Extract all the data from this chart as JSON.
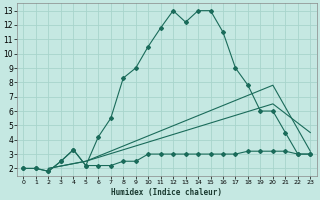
{
  "xlabel": "Humidex (Indice chaleur)",
  "xlim": [
    -0.5,
    23.5
  ],
  "ylim": [
    1.5,
    13.5
  ],
  "yticks": [
    2,
    3,
    4,
    5,
    6,
    7,
    8,
    9,
    10,
    11,
    12,
    13
  ],
  "xticks": [
    0,
    1,
    2,
    3,
    4,
    5,
    6,
    7,
    8,
    9,
    10,
    11,
    12,
    13,
    14,
    15,
    16,
    17,
    18,
    19,
    20,
    21,
    22,
    23
  ],
  "background_color": "#c5e8e2",
  "grid_color": "#a8d4cc",
  "line_color": "#1a6b5a",
  "line1_x": [
    0,
    1,
    2,
    3,
    4,
    5,
    6,
    7,
    8,
    9,
    10,
    11,
    12,
    13,
    14,
    15,
    16,
    17,
    18,
    19,
    20,
    21,
    22,
    23
  ],
  "line1_y": [
    2.0,
    2.0,
    1.8,
    2.5,
    3.3,
    2.2,
    4.2,
    5.5,
    8.3,
    9.0,
    10.5,
    11.8,
    13.0,
    12.2,
    13.0,
    13.0,
    11.5,
    9.0,
    7.8,
    6.0,
    6.0,
    4.5,
    3.0,
    3.0
  ],
  "line2_x": [
    0,
    1,
    2,
    3,
    4,
    5,
    6,
    7,
    8,
    9,
    10,
    11,
    12,
    13,
    14,
    15,
    16,
    17,
    18,
    19,
    20,
    21,
    22,
    23
  ],
  "line2_y": [
    2.0,
    2.0,
    1.8,
    2.5,
    3.3,
    2.2,
    2.2,
    2.2,
    2.5,
    2.5,
    3.0,
    3.0,
    3.0,
    3.0,
    3.0,
    3.0,
    3.0,
    3.0,
    3.2,
    3.2,
    3.2,
    3.2,
    3.0,
    3.0
  ],
  "line3_x": [
    2,
    5,
    20,
    23
  ],
  "line3_y": [
    2.0,
    2.5,
    7.8,
    3.2
  ],
  "line4_x": [
    2,
    5,
    20,
    23
  ],
  "line4_y": [
    2.0,
    2.5,
    6.5,
    4.5
  ]
}
